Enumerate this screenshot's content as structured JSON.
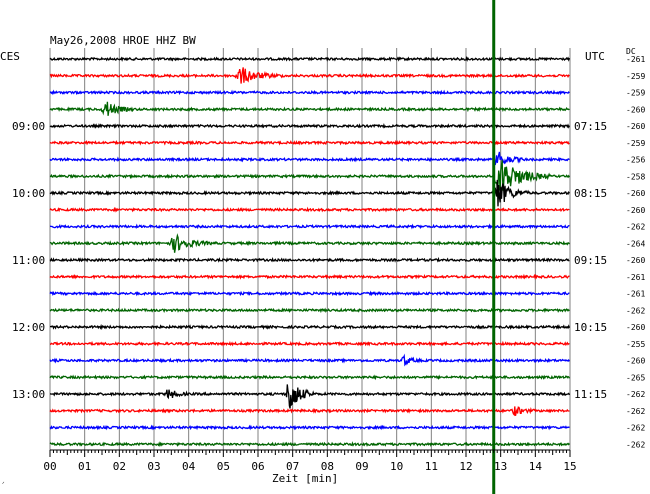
{
  "header": {
    "title": "May26,2008   HROE HHZ BW",
    "left_tz": "CES",
    "right_tz": "UTC",
    "dc_label": "DC"
  },
  "footer": {
    "xlabel": "Zeit [min]"
  },
  "colors": {
    "trace_cycle": [
      "#000000",
      "#ff0000",
      "#0000ff",
      "#006400"
    ],
    "grid": "#808080",
    "event_marker": "#006400"
  },
  "chart_data": {
    "type": "line",
    "title": "May26,2008   HROE HHZ BW",
    "xlabel": "Zeit [min]",
    "x_ticks": [
      "00",
      "01",
      "02",
      "03",
      "04",
      "05",
      "06",
      "07",
      "08",
      "09",
      "10",
      "11",
      "12",
      "13",
      "14",
      "15"
    ],
    "xlim": [
      0,
      15
    ],
    "grid": true,
    "traces_per_hour": 4,
    "minutes_per_trace": 15,
    "left_time_labels": [
      {
        "trace": 4,
        "label": "09:00"
      },
      {
        "trace": 8,
        "label": "10:00"
      },
      {
        "trace": 12,
        "label": "11:00"
      },
      {
        "trace": 16,
        "label": "12:00"
      },
      {
        "trace": 20,
        "label": "13:00"
      }
    ],
    "right_time_labels": [
      {
        "trace": 4,
        "label": "07:15"
      },
      {
        "trace": 8,
        "label": "08:15"
      },
      {
        "trace": 12,
        "label": "09:15"
      },
      {
        "trace": 16,
        "label": "10:15"
      },
      {
        "trace": 20,
        "label": "11:15"
      }
    ],
    "dc_offsets": [
      "-261",
      "-259",
      "-259",
      "-260",
      "-260",
      "-259",
      "-256",
      "-258",
      "-260",
      "-260",
      "-262",
      "-264",
      "-260",
      "-261",
      "-261",
      "-262",
      "-260",
      "-255",
      "-260",
      "-265",
      "-262",
      "-262",
      "-262",
      "-262"
    ],
    "vertical_marker_minute": 12.8,
    "events": [
      {
        "trace": 1,
        "minute": 5.5,
        "amp": 2.2,
        "dur": 1.2
      },
      {
        "trace": 3,
        "minute": 1.6,
        "amp": 2.2,
        "dur": 0.8
      },
      {
        "trace": 6,
        "minute": 12.9,
        "amp": 2.2,
        "dur": 0.8
      },
      {
        "trace": 7,
        "minute": 13.0,
        "amp": 5.0,
        "dur": 1.4
      },
      {
        "trace": 8,
        "minute": 12.9,
        "amp": 4.0,
        "dur": 0.9
      },
      {
        "trace": 11,
        "minute": 3.6,
        "amp": 2.2,
        "dur": 1.1
      },
      {
        "trace": 20,
        "minute": 6.9,
        "amp": 5.5,
        "dur": 0.7
      },
      {
        "trace": 20,
        "minute": 3.4,
        "amp": 1.4,
        "dur": 0.6
      },
      {
        "trace": 18,
        "minute": 10.2,
        "amp": 1.3,
        "dur": 0.5
      },
      {
        "trace": 21,
        "minute": 13.4,
        "amp": 1.2,
        "dur": 0.6
      }
    ]
  }
}
